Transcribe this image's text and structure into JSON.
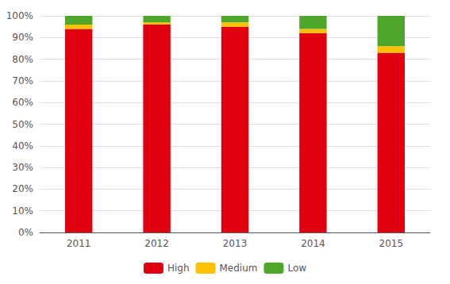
{
  "chart_data": {
    "type": "bar",
    "stacked": true,
    "categories": [
      "2011",
      "2012",
      "2013",
      "2014",
      "2015"
    ],
    "series": [
      {
        "name": "High",
        "color": "#E00010",
        "values": [
          94,
          96,
          95,
          92,
          83
        ]
      },
      {
        "name": "Medium",
        "color": "#FFC000",
        "values": [
          2,
          1,
          2,
          2,
          3
        ]
      },
      {
        "name": "Low",
        "color": "#4EA72A",
        "values": [
          4,
          3,
          3,
          6,
          14
        ]
      }
    ],
    "ylim": [
      0,
      100
    ],
    "yticks": [
      {
        "value": 0,
        "label": "0%"
      },
      {
        "value": 10,
        "label": "10%"
      },
      {
        "value": 20,
        "label": "20%"
      },
      {
        "value": 30,
        "label": "30%"
      },
      {
        "value": 40,
        "label": "40%"
      },
      {
        "value": 50,
        "label": "50%"
      },
      {
        "value": 60,
        "label": "60%"
      },
      {
        "value": 70,
        "label": "70%"
      },
      {
        "value": 80,
        "label": "80%"
      },
      {
        "value": 90,
        "label": "90%"
      },
      {
        "value": 100,
        "label": "100%"
      }
    ],
    "grid": true,
    "legend": "bottom"
  }
}
